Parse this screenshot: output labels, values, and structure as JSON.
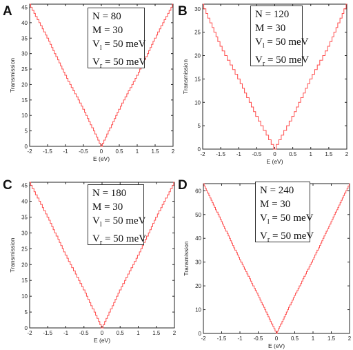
{
  "chart_data": [
    {
      "type": "line",
      "panel": "A",
      "xlabel": "E (eV)",
      "ylabel": "Transmission",
      "xlim": [
        -2,
        2
      ],
      "ylim": [
        0,
        46
      ],
      "xticks": [
        "-2",
        "-1.5",
        "-1",
        "-0.5",
        "0",
        "0.5",
        "1",
        "1.5",
        "2"
      ],
      "yticks": [
        "0",
        "5",
        "10",
        "15",
        "20",
        "25",
        "30",
        "35",
        "40",
        "45"
      ],
      "legend": [
        "N = 80",
        "M = 30",
        "V_l = 50 meV",
        "V_r = 50 meV"
      ],
      "series": [
        {
          "values_at_x": [
            [
              -2,
              46
            ],
            [
              -1.5,
              35
            ],
            [
              -1,
              23
            ],
            [
              -0.5,
              12
            ],
            [
              0,
              0
            ],
            [
              0.5,
              12
            ],
            [
              1,
              23
            ],
            [
              1.5,
              35
            ],
            [
              2,
              46
            ]
          ]
        }
      ],
      "color": "#ff4d4d"
    },
    {
      "type": "line",
      "panel": "B",
      "xlabel": "E (eV)",
      "ylabel": "Transmission",
      "xlim": [
        -2,
        2
      ],
      "ylim": [
        0,
        31
      ],
      "xticks": [
        "-2",
        "-1.5",
        "-1",
        "-0.5",
        "0",
        "0.5",
        "1",
        "1.5",
        "2"
      ],
      "yticks": [
        "0",
        "5",
        "10",
        "15",
        "20",
        "25",
        "30"
      ],
      "legend": [
        "N = 120",
        "M = 30",
        "V_l = 50 meV",
        "V_r = 50 meV"
      ],
      "series": [
        {
          "values_at_x": [
            [
              -2,
              31
            ],
            [
              -1.5,
              22
            ],
            [
              -1,
              15
            ],
            [
              -0.5,
              7
            ],
            [
              0,
              0
            ],
            [
              0.5,
              7
            ],
            [
              1,
              15
            ],
            [
              1.5,
              22
            ],
            [
              2,
              31
            ]
          ]
        }
      ],
      "color": "#ff4d4d"
    },
    {
      "type": "line",
      "panel": "C",
      "xlabel": "E (eV)",
      "ylabel": "Transmission",
      "xlim": [
        -2,
        2
      ],
      "ylim": [
        0,
        46
      ],
      "xticks": [
        "-2",
        "-1.5",
        "-1",
        "-0.5",
        "0",
        "0.5",
        "1",
        "1.5",
        "2"
      ],
      "yticks": [
        "0",
        "5",
        "10",
        "15",
        "20",
        "25",
        "30",
        "35",
        "40",
        "45"
      ],
      "legend": [
        "N = 180",
        "M = 30",
        "V_l = 50 meV",
        "V_r = 50 meV"
      ],
      "series": [
        {
          "values_at_x": [
            [
              -2,
              46
            ],
            [
              -1.5,
              35
            ],
            [
              -1,
              23
            ],
            [
              -0.5,
              12
            ],
            [
              0,
              0
            ],
            [
              0.5,
              12
            ],
            [
              1,
              23
            ],
            [
              1.5,
              35
            ],
            [
              2,
              46
            ]
          ]
        }
      ],
      "color": "#ff4d4d"
    },
    {
      "type": "line",
      "panel": "D",
      "xlabel": "E (eV)",
      "ylabel": "Transmission",
      "xlim": [
        -2,
        2
      ],
      "ylim": [
        0,
        63
      ],
      "xticks": [
        "-2",
        "-1.5",
        "-1",
        "-0.5",
        "0",
        "0.5",
        "1",
        "1.5",
        "2"
      ],
      "yticks": [
        "0",
        "10",
        "20",
        "30",
        "40",
        "50",
        "60"
      ],
      "legend": [
        "N = 240",
        "M = 30",
        "V_l = 50 meV",
        "V_r = 50 meV"
      ],
      "series": [
        {
          "values_at_x": [
            [
              -2,
              63
            ],
            [
              -1.5,
              47
            ],
            [
              -1,
              31
            ],
            [
              -0.5,
              16
            ],
            [
              0,
              0
            ],
            [
              0.5,
              16
            ],
            [
              1,
              31
            ],
            [
              1.5,
              47
            ],
            [
              2,
              63
            ]
          ]
        }
      ],
      "color": "#ff4d4d"
    }
  ]
}
